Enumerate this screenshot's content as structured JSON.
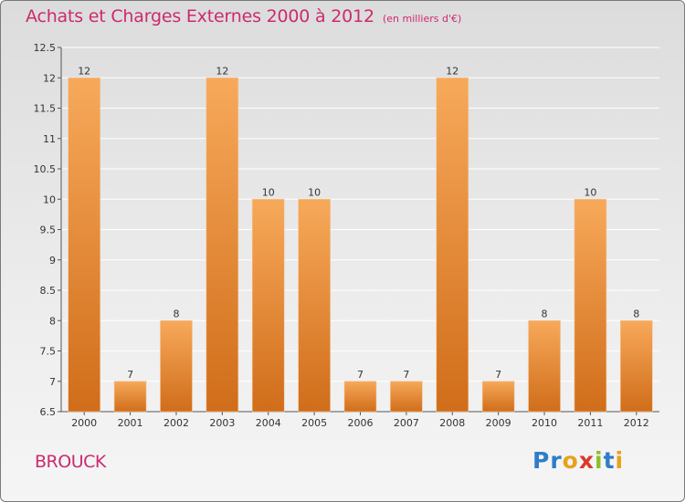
{
  "header": {
    "title": "Achats et Charges Externes 2000 à 2012",
    "subtitle": "(en milliers d'€)"
  },
  "footer": {
    "commune": "BROUCK",
    "logo_text": "Proxiti",
    "logo_colors": [
      "#2e7dc8",
      "#2e7dc8",
      "#e8a21c",
      "#d93a2b",
      "#8cbf2a",
      "#2e7dc8",
      "#e8a21c"
    ]
  },
  "colors": {
    "title": "#cc2a6f",
    "bar_top": "#f7a95a",
    "bar_bottom": "#d06d1a",
    "grid": "#ffffff",
    "axis": "#555555"
  },
  "chart_data": {
    "type": "bar",
    "title": "Achats et Charges Externes 2000 à 2012",
    "subtitle": "(en milliers d'€)",
    "xlabel": "",
    "ylabel": "",
    "categories": [
      "2000",
      "2001",
      "2002",
      "2003",
      "2004",
      "2005",
      "2006",
      "2007",
      "2008",
      "2009",
      "2010",
      "2011",
      "2012"
    ],
    "values": [
      12,
      7,
      8,
      12,
      10,
      10,
      7,
      7,
      12,
      7,
      8,
      10,
      8
    ],
    "ylim": [
      6.5,
      12.5
    ],
    "yticks": [
      6.5,
      7,
      7.5,
      8,
      8.5,
      9,
      9.5,
      10,
      10.5,
      11,
      11.5,
      12,
      12.5
    ],
    "ytick_labels": [
      "6.5",
      "7",
      "7.5",
      "8",
      "8.5",
      "9",
      "9.5",
      "10",
      "10.5",
      "11",
      "11.5",
      "12",
      "12.5"
    ],
    "data_labels": [
      "12",
      "7",
      "8",
      "12",
      "10",
      "10",
      "7",
      "7",
      "12",
      "7",
      "8",
      "10",
      "8"
    ],
    "grid": true,
    "legend": "none"
  }
}
